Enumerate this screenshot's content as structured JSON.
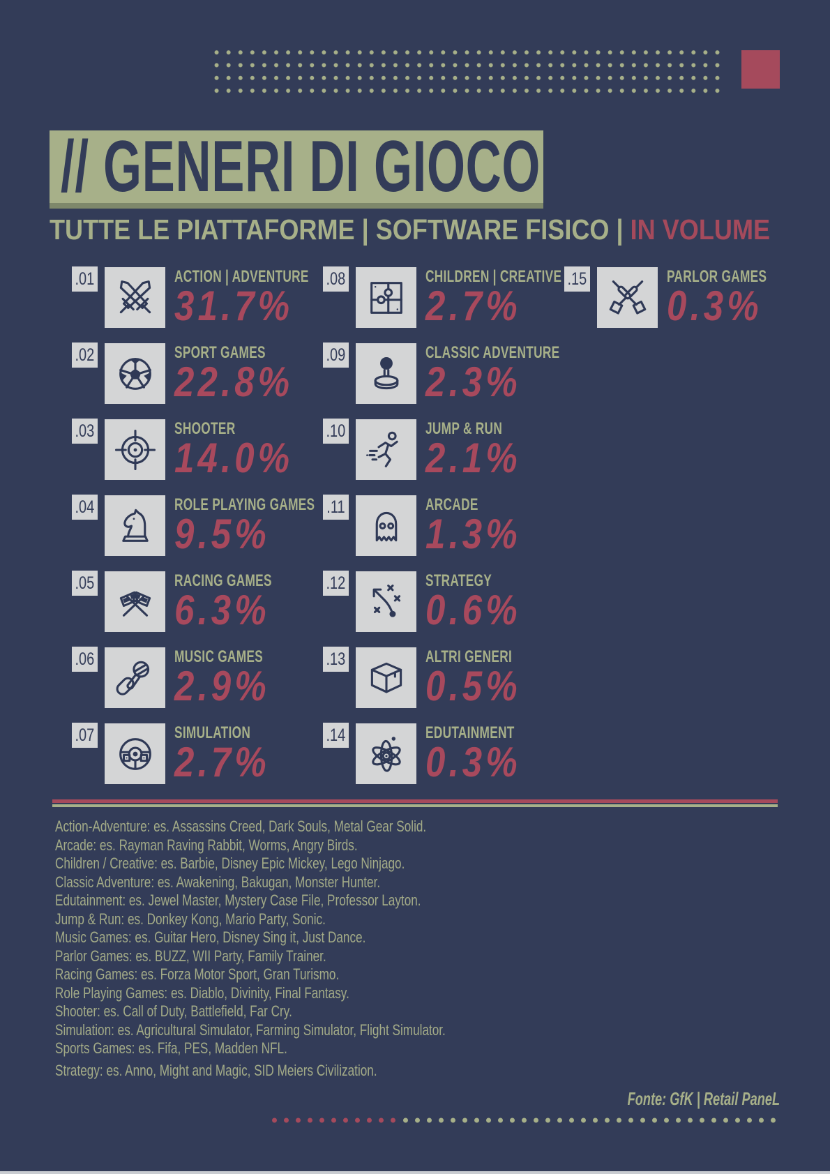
{
  "page": {
    "background": "#333c58",
    "accent_green": "#a7b089",
    "accent_red": "#a54a5c",
    "box_gray": "#d4d5d6",
    "icon_color": "#2f3956"
  },
  "header": {
    "title": "// GENERI DI GIOCO",
    "subtitle_left": "TUTTE LE PIATTAFORME | SOFTWARE FISICO | ",
    "subtitle_right": "IN VOLUME"
  },
  "genres": [
    {
      "num": ".01",
      "label": "ACTION | ADVENTURE",
      "value": "31.7%",
      "icon": "crossed-swords-icon"
    },
    {
      "num": ".02",
      "label": "SPORT GAMES",
      "value": "22.8%",
      "icon": "soccer-ball-icon"
    },
    {
      "num": ".03",
      "label": "SHOOTER",
      "value": "14.0%",
      "icon": "crosshair-icon"
    },
    {
      "num": ".04",
      "label": "ROLE PLAYING GAMES",
      "value": "9.5%",
      "icon": "chess-knight-icon"
    },
    {
      "num": ".05",
      "label": "RACING GAMES",
      "value": "6.3%",
      "icon": "racing-flags-icon"
    },
    {
      "num": ".06",
      "label": "MUSIC GAMES",
      "value": "2.9%",
      "icon": "microphone-icon"
    },
    {
      "num": ".07",
      "label": "SIMULATION",
      "value": "2.7%",
      "icon": "steering-wheel-icon"
    },
    {
      "num": ".08",
      "label": "CHILDREN | CREATIVE",
      "value": "2.7%",
      "icon": "puzzle-icon"
    },
    {
      "num": ".09",
      "label": "CLASSIC ADVENTURE",
      "value": "2.3%",
      "icon": "joystick-icon"
    },
    {
      "num": ".10",
      "label": "JUMP & RUN",
      "value": "2.1%",
      "icon": "running-figure-icon"
    },
    {
      "num": ".11",
      "label": "ARCADE",
      "value": "1.3%",
      "icon": "ghost-icon"
    },
    {
      "num": ".12",
      "label": "STRATEGY",
      "value": "0.6%",
      "icon": "tactics-icon"
    },
    {
      "num": ".13",
      "label": "ALTRI GENERI",
      "value": "0.5%",
      "icon": "box-icon"
    },
    {
      "num": ".14",
      "label": "EDUTAINMENT",
      "value": "0.3%",
      "icon": "atom-icon"
    },
    {
      "num": ".15",
      "label": "PARLOR GAMES",
      "value": "0.3%",
      "icon": "crossed-darts-icon"
    }
  ],
  "footnotes": [
    "Action-Adventure: es. Assassins Creed, Dark Souls, Metal Gear Solid.",
    "Arcade: es. Rayman Raving Rabbit, Worms, Angry Birds.",
    "Children / Creative: es. Barbie, Disney Epic Mickey, Lego Ninjago.",
    "Classic Adventure: es. Awakening, Bakugan, Monster Hunter.",
    "Edutainment: es. Jewel Master, Mystery Case File, Professor Layton.",
    "Jump & Run: es. Donkey Kong, Mario Party, Sonic.",
    "Music Games: es. Guitar Hero, Disney Sing it, Just Dance.",
    "Parlor Games: es. BUZZ, WII Party, Family Trainer.",
    "Racing Games: es. Forza Motor Sport, Gran Turismo.",
    "Role Playing Games: es. Diablo, Divinity, Final Fantasy.",
    "Shooter: es. Call of Duty, Battlefield, Far Cry.",
    "Simulation: es. Agricultural Simulator, Farming Simulator, Flight Simulator.",
    "Sports Games: es. Fifa, PES, Madden NFL.",
    "Strategy: es. Anno, Might and Magic, SID Meiers Civilization."
  ],
  "source": "Fonte: GfK | Retail PaneL",
  "chart_data": {
    "type": "table",
    "title": "// GENERI DI GIOCO",
    "subtitle": "TUTTE LE PIATTAFORME | SOFTWARE FISICO | IN VOLUME",
    "categories": [
      "ACTION | ADVENTURE",
      "SPORT GAMES",
      "SHOOTER",
      "ROLE PLAYING GAMES",
      "RACING GAMES",
      "MUSIC GAMES",
      "SIMULATION",
      "CHILDREN | CREATIVE",
      "CLASSIC ADVENTURE",
      "JUMP & RUN",
      "ARCADE",
      "STRATEGY",
      "ALTRI GENERI",
      "EDUTAINMENT",
      "PARLOR GAMES"
    ],
    "values": [
      31.7,
      22.8,
      14.0,
      9.5,
      6.3,
      2.9,
      2.7,
      2.7,
      2.3,
      2.1,
      1.3,
      0.6,
      0.5,
      0.3,
      0.3
    ],
    "unit": "%",
    "source": "Fonte: GfK | Retail PaneL"
  }
}
